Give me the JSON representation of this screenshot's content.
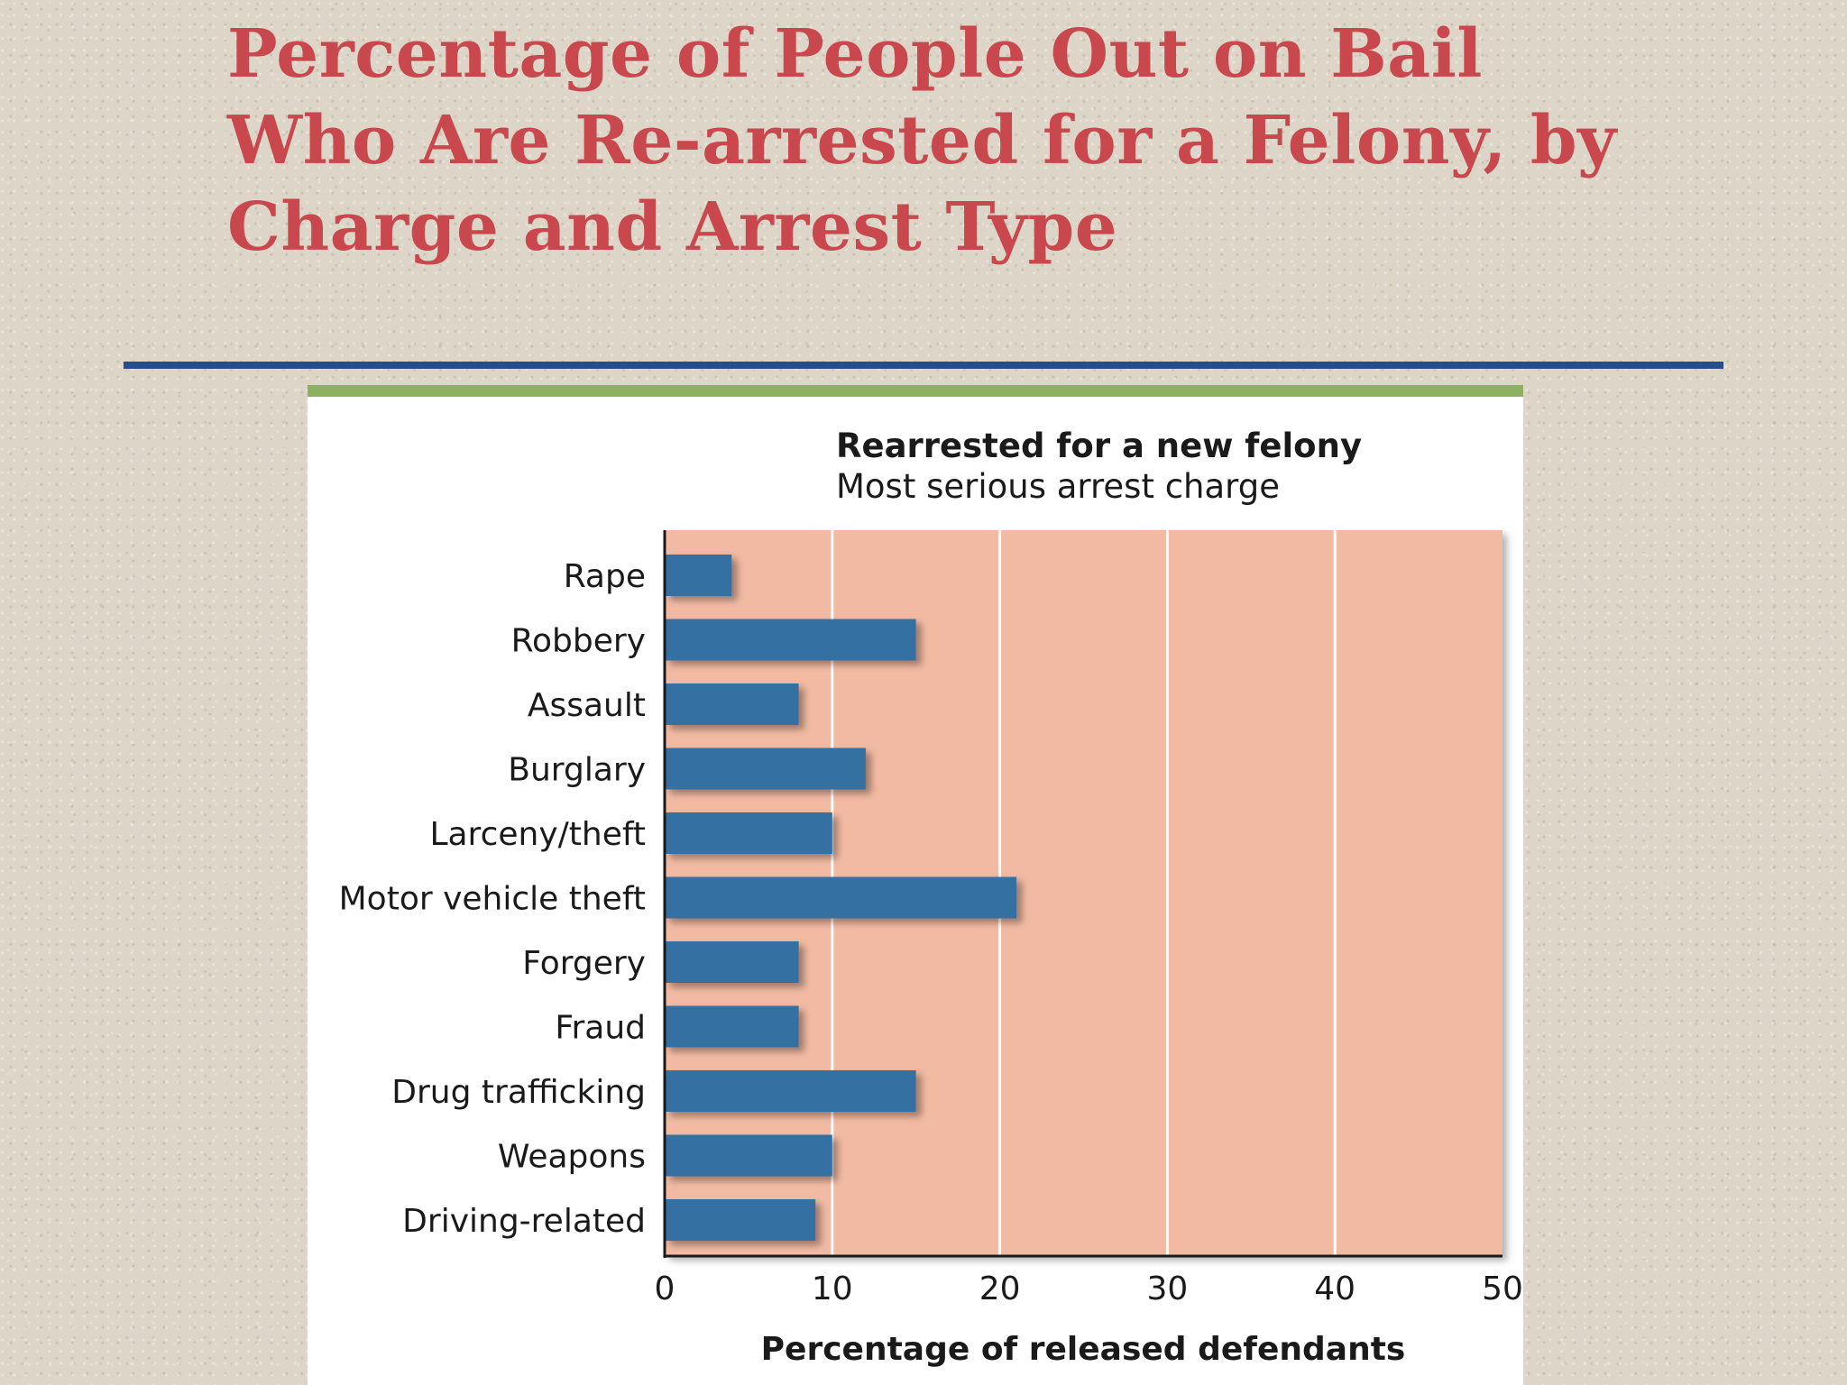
{
  "slide": {
    "title": "Percentage of People Out on Bail Who Are Re-arrested for a Felony, by Charge and Arrest Type"
  },
  "colors": {
    "title": "#c9484d",
    "rule": "#264c8a",
    "card_bar": "#8db15f",
    "plot_bg": "#f2baa3",
    "bar": "#3570a3",
    "gridline": "#ffffff",
    "axis": "#1a1a1a"
  },
  "chart_data": {
    "type": "bar",
    "orientation": "horizontal",
    "title": "Rearrested for a new felony",
    "subtitle": "Most serious arrest charge",
    "xlabel": "Percentage of released defendants",
    "ylabel": "",
    "categories": [
      "Rape",
      "Robbery",
      "Assault",
      "Burglary",
      "Larceny/theft",
      "Motor vehicle theft",
      "Forgery",
      "Fraud",
      "Drug trafficking",
      "Weapons",
      "Driving-related"
    ],
    "values": [
      4,
      15,
      8,
      12,
      10,
      21,
      8,
      8,
      15,
      10,
      9
    ],
    "xlim": [
      0,
      50
    ],
    "xticks": [
      0,
      10,
      20,
      30,
      40,
      50
    ],
    "grid": true
  }
}
